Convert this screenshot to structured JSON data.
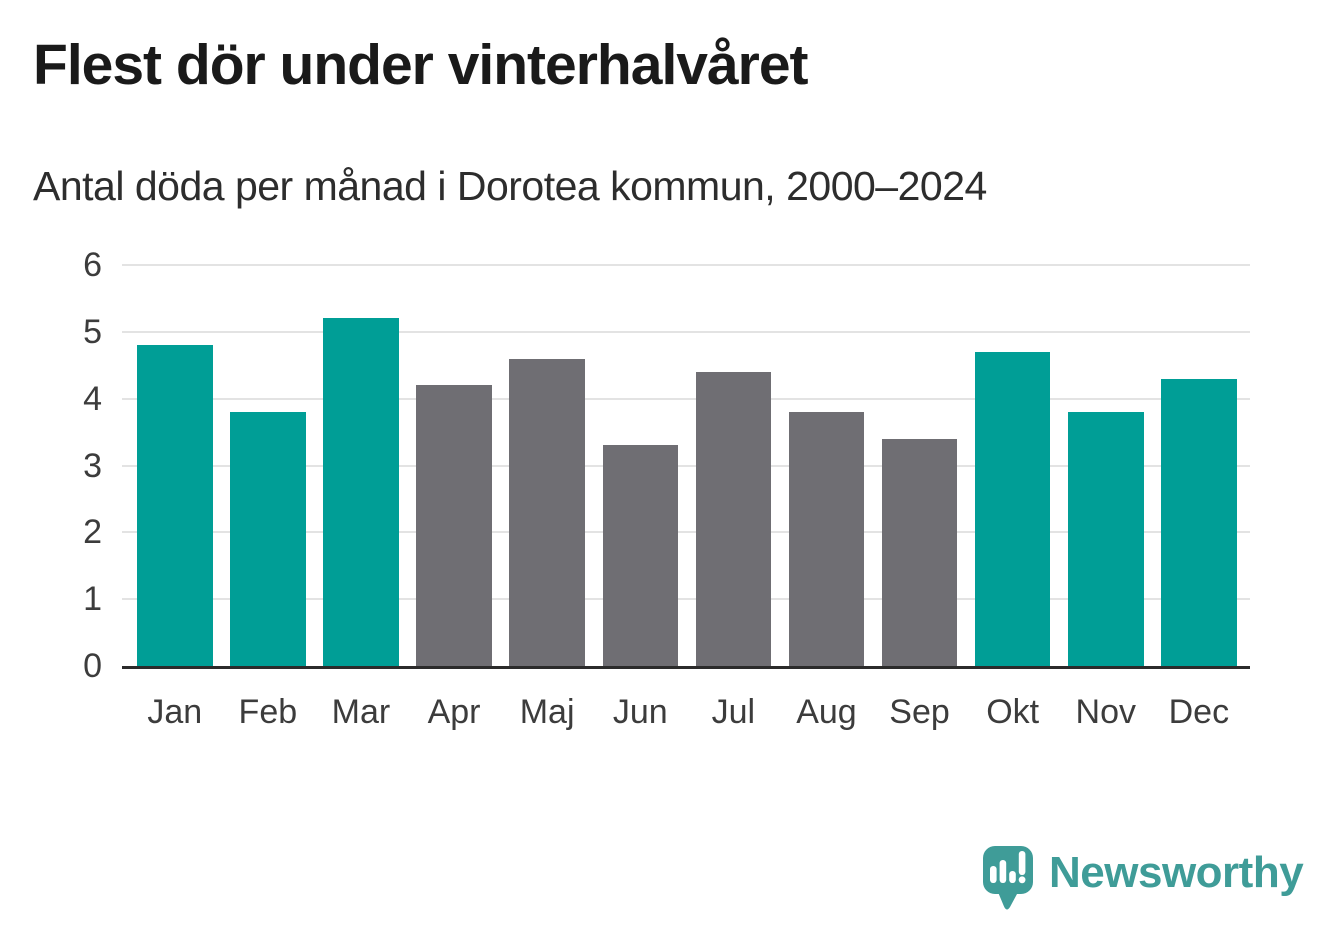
{
  "title": "Flest dör under vinterhalvåret",
  "subtitle": "Antal döda per månad i Dorotea kommun, 2000–2024",
  "chart_data": {
    "type": "bar",
    "title": "Flest dör under vinterhalvåret",
    "subtitle": "Antal döda per månad i Dorotea kommun, 2000–2024",
    "categories": [
      "Jan",
      "Feb",
      "Mar",
      "Apr",
      "Maj",
      "Jun",
      "Jul",
      "Aug",
      "Sep",
      "Okt",
      "Nov",
      "Dec"
    ],
    "values": [
      4.8,
      3.8,
      5.2,
      4.2,
      4.6,
      3.3,
      4.4,
      3.8,
      3.4,
      4.7,
      3.8,
      4.3
    ],
    "bar_color_keys": [
      "teal",
      "teal",
      "teal",
      "gray",
      "gray",
      "gray",
      "gray",
      "gray",
      "gray",
      "teal",
      "teal",
      "teal"
    ],
    "colors": {
      "teal": "#009E96",
      "gray": "#6F6E73"
    },
    "xlabel": "",
    "ylabel": "",
    "ylim": [
      0,
      6
    ],
    "yticks": [
      0,
      1,
      2,
      3,
      4,
      5,
      6
    ],
    "grid": true,
    "legend_position": "none",
    "gridline_color": "#e3e3e3",
    "baseline_color": "#2b2b2b",
    "tick_label_color": "#3c3c3c"
  },
  "branding": {
    "logo_text": "Newsworthy",
    "logo_color": "#3F9C98",
    "logo_icon": "bar-chart-speech-bubble-icon"
  }
}
